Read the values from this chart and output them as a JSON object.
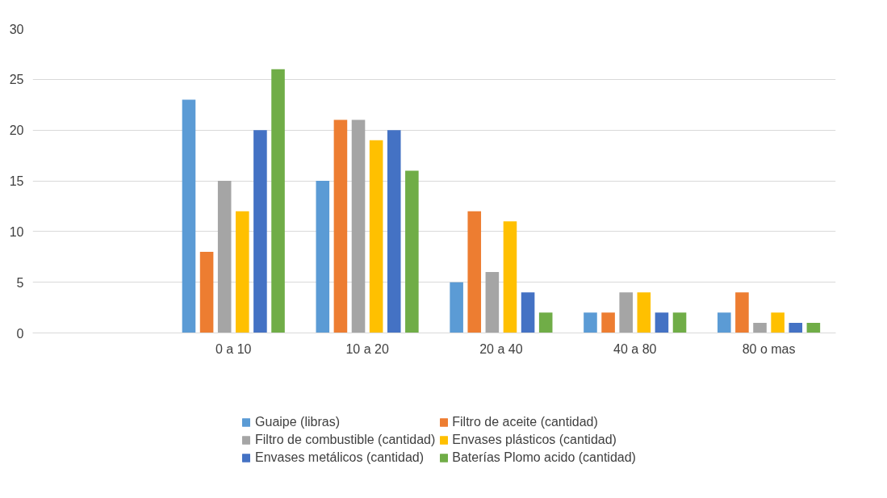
{
  "chart_data": {
    "type": "bar",
    "categories": [
      null,
      "0 a 10",
      "10 a 20",
      "20 a 40",
      "40 a 80",
      "80 o mas"
    ],
    "series": [
      {
        "name": "Guaipe (libras)",
        "color": "#5b9bd5",
        "values": [
          null,
          23,
          15,
          5,
          2,
          2
        ]
      },
      {
        "name": "Filtro de aceite (cantidad)",
        "color": "#ed7d31",
        "values": [
          null,
          8,
          21,
          12,
          2,
          4
        ]
      },
      {
        "name": "Filtro de combustible (cantidad)",
        "color": "#a5a5a5",
        "values": [
          null,
          15,
          21,
          6,
          4,
          1
        ]
      },
      {
        "name": "Envases plásticos (cantidad)",
        "color": "#ffc000",
        "values": [
          null,
          12,
          19,
          11,
          4,
          2
        ]
      },
      {
        "name": "Envases metálicos (cantidad)",
        "color": "#4472c4",
        "values": [
          null,
          20,
          20,
          4,
          2,
          1
        ]
      },
      {
        "name": "Baterías Plomo acido (cantidad)",
        "color": "#70ad47",
        "values": [
          null,
          26,
          16,
          2,
          2,
          1
        ]
      }
    ],
    "ylim": [
      0,
      30
    ],
    "yticks": [
      0,
      5,
      10,
      15,
      20,
      25,
      30
    ],
    "grid": "y",
    "legend": "bottom"
  }
}
